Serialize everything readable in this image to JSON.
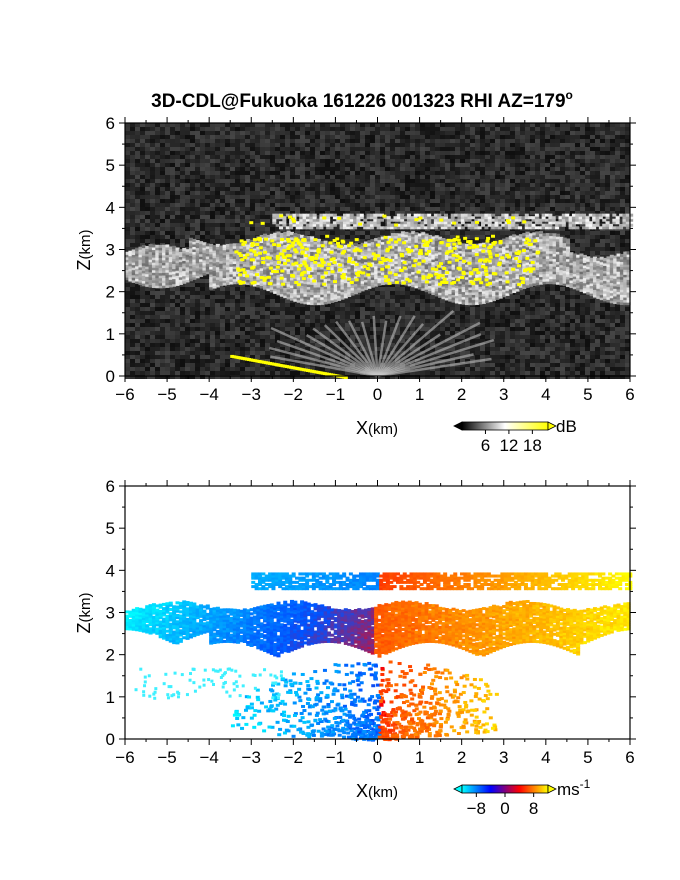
{
  "chart_data": [
    {
      "type": "heatmap",
      "title": "3D-CDL@Fukuoka 161226 001323 RHI AZ=179",
      "title_superscript": "o",
      "xlabel_main": "X",
      "xlabel_unit": "(km)",
      "ylabel_main": "Z",
      "ylabel_unit": "(km)",
      "xlim": [
        -6,
        6
      ],
      "ylim": [
        0,
        6
      ],
      "xticks": [
        "-6",
        "-5",
        "-4",
        "-3",
        "-2",
        "-1",
        "0",
        "1",
        "2",
        "3",
        "4",
        "5",
        "6"
      ],
      "yticks": [
        "0",
        "1",
        "2",
        "3",
        "4",
        "5",
        "6"
      ],
      "colorbar": {
        "unit": "dB",
        "ticks": [
          "6",
          "12",
          "18"
        ],
        "tick_values": [
          6,
          12,
          18
        ],
        "range": [
          0,
          22
        ],
        "colors": [
          "#000000",
          "#ffffff",
          "#ffff00"
        ]
      },
      "layers": [
        {
          "name": "noise background",
          "z_range": [
            0,
            6
          ],
          "db_range": [
            0,
            7
          ]
        },
        {
          "name": "cloud layer",
          "x_range": [
            -6,
            6
          ],
          "z_range": [
            1.9,
            3.4
          ],
          "db_range": [
            10,
            17
          ]
        },
        {
          "name": "upper cloud layer",
          "x_range": [
            -2.5,
            6
          ],
          "z_range": [
            3.55,
            3.9
          ],
          "db_range": [
            10,
            17
          ]
        },
        {
          "name": "strong echo patches",
          "x_range": [
            -3.5,
            4
          ],
          "z_range": [
            2.2,
            3.9
          ],
          "db_min": 18
        },
        {
          "name": "near-ground beam",
          "x_range": [
            -3.5,
            -0.8
          ],
          "z_range": [
            0,
            0.5
          ],
          "db_min": 18
        }
      ]
    },
    {
      "type": "heatmap",
      "xlabel_main": "X",
      "xlabel_unit": "(km)",
      "ylabel_main": "Z",
      "ylabel_unit": "(km)",
      "xlim": [
        -6,
        6
      ],
      "ylim": [
        0,
        6
      ],
      "xticks": [
        "-6",
        "-5",
        "-4",
        "-3",
        "-2",
        "-1",
        "0",
        "1",
        "2",
        "3",
        "4",
        "5",
        "6"
      ],
      "yticks": [
        "0",
        "1",
        "2",
        "3",
        "4",
        "5",
        "6"
      ],
      "colorbar": {
        "unit": "ms",
        "unit_superscript": "-1",
        "ticks": [
          "-8",
          "0",
          "8"
        ],
        "tick_values": [
          -8,
          0,
          8
        ],
        "range": [
          -12,
          12
        ],
        "colors": [
          "#00ffff",
          "#0000ff",
          "#ff0000",
          "#ffff00"
        ]
      },
      "layers": [
        {
          "name": "main velocity layer",
          "x_range": [
            -6,
            6
          ],
          "z_range": [
            2.0,
            3.3
          ],
          "velocity_range": [
            -9,
            9
          ]
        },
        {
          "name": "upper velocity layer",
          "x_range": [
            -3,
            6
          ],
          "z_range": [
            3.6,
            4.0
          ],
          "velocity_range": [
            -8,
            10
          ]
        },
        {
          "name": "near-radar fan",
          "x_range": [
            -3.5,
            2.7
          ],
          "z_range": [
            0,
            1.9
          ],
          "velocity_range": [
            -10,
            10
          ]
        }
      ]
    }
  ]
}
